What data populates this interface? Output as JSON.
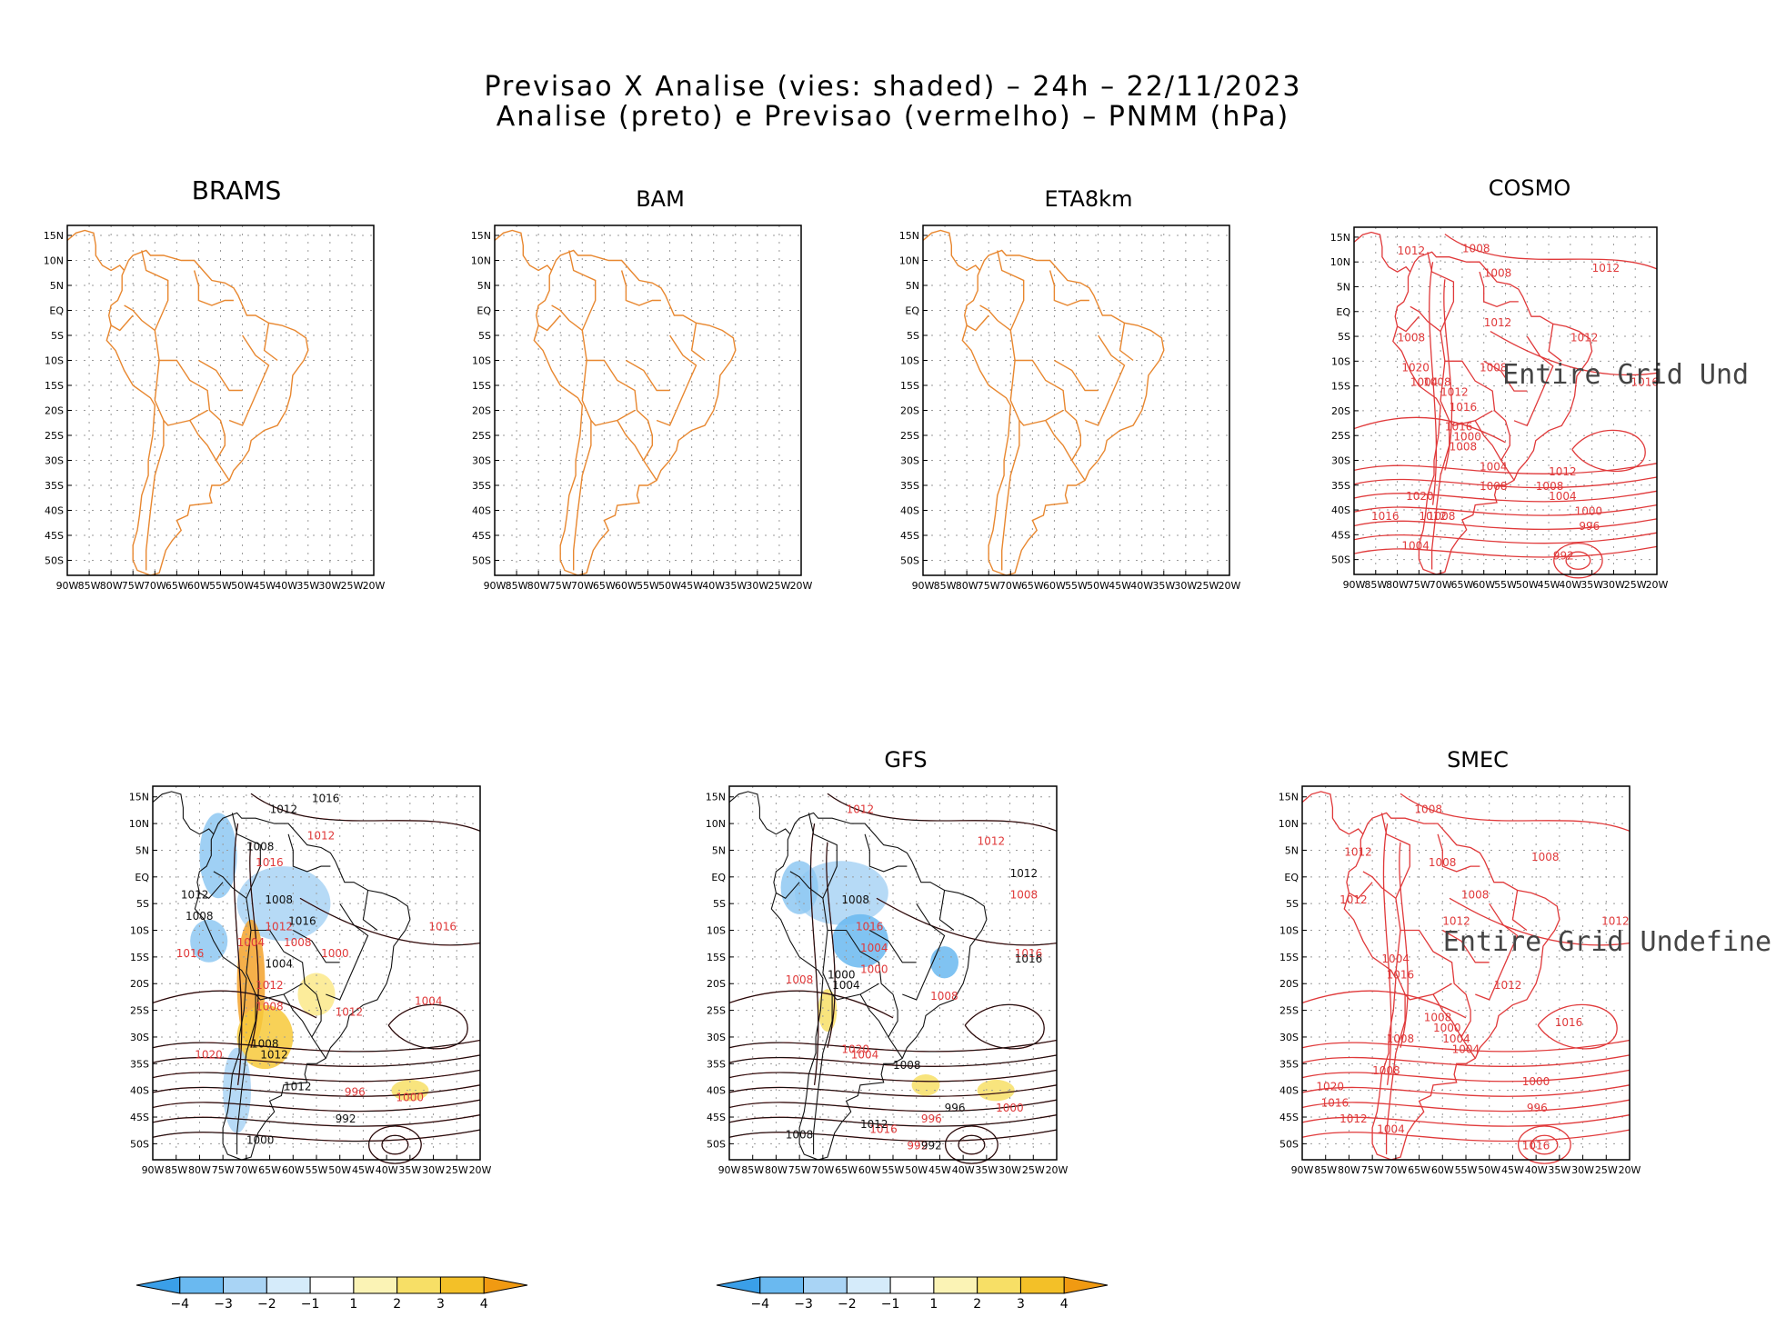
{
  "title": {
    "line1": "Previsao X Analise (vies: shaded) – 24h – 22/11/2023",
    "line2": "Analise (preto) e Previsao (vermelho) – PNMM (hPa)"
  },
  "axes": {
    "lat_labels": [
      "15N",
      "10N",
      "5N",
      "EQ",
      "5S",
      "10S",
      "15S",
      "20S",
      "25S",
      "30S",
      "35S",
      "40S",
      "45S",
      "50S"
    ],
    "lon_labels": [
      "90W",
      "85W",
      "80W",
      "75W",
      "70W",
      "65W",
      "60W",
      "55W",
      "50W",
      "45W",
      "40W",
      "35W",
      "30W",
      "25W",
      "20W"
    ]
  },
  "panels": {
    "brams": {
      "title": "BRAMS"
    },
    "bam": {
      "title": "BAM"
    },
    "eta": {
      "title": "ETA8km"
    },
    "cosmo": {
      "title": "COSMO",
      "message": "Entire Grid Und"
    },
    "row2_left": {
      "title": ""
    },
    "gfs": {
      "title": "GFS"
    },
    "smec": {
      "title": "SMEC",
      "message": "Entire Grid Undefine"
    }
  },
  "contour_labels": {
    "cosmo": [
      "1012",
      "1008",
      "1008",
      "1012",
      "1008",
      "1012",
      "1008",
      "1020",
      "1004",
      "1008",
      "1012",
      "1016",
      "1016",
      "1008",
      "1016",
      "1000",
      "1004",
      "1008",
      "1012",
      "1008",
      "1004",
      "1020",
      "1016",
      "1012",
      "1008",
      "1000",
      "996",
      "1004",
      "992",
      "1012"
    ],
    "brams2": [
      "1016",
      "1012",
      "1012",
      "1008",
      "1016",
      "1008",
      "1012",
      "1008",
      "1016",
      "1012",
      "1004",
      "1016",
      "1008",
      "1004",
      "1016",
      "1000",
      "1012",
      "1008",
      "1004",
      "1012",
      "1008",
      "1020",
      "1012",
      "996",
      "1012",
      "1000",
      "992",
      "1000"
    ],
    "gfs": [
      "1012",
      "1012",
      "1012",
      "1008",
      "1008",
      "1016",
      "1004",
      "1000",
      "1016",
      "1016",
      "1000",
      "1004",
      "1008",
      "1008",
      "1004",
      "1020",
      "1008",
      "996",
      "1000",
      "996",
      "1016",
      "1012",
      "1008",
      "992",
      "992"
    ],
    "smec": [
      "1008",
      "1012",
      "1008",
      "1012",
      "1012",
      "1008",
      "1008",
      "1004",
      "1012",
      "1016",
      "1008",
      "1000",
      "1004",
      "1016",
      "1008",
      "1004",
      "1008",
      "1020",
      "1000",
      "1016",
      "996",
      "1012",
      "1004",
      "1016",
      "1012"
    ]
  },
  "colorbar": {
    "ticks": [
      "−4",
      "−3",
      "−2",
      "−1",
      "1",
      "2",
      "3",
      "4"
    ],
    "colors": [
      "#3a9fe8",
      "#6ab9f0",
      "#a9d4f5",
      "#d5ebfa",
      "#ffffff",
      "#fbf3b5",
      "#f7df66",
      "#f3c028",
      "#f09a12"
    ]
  }
}
